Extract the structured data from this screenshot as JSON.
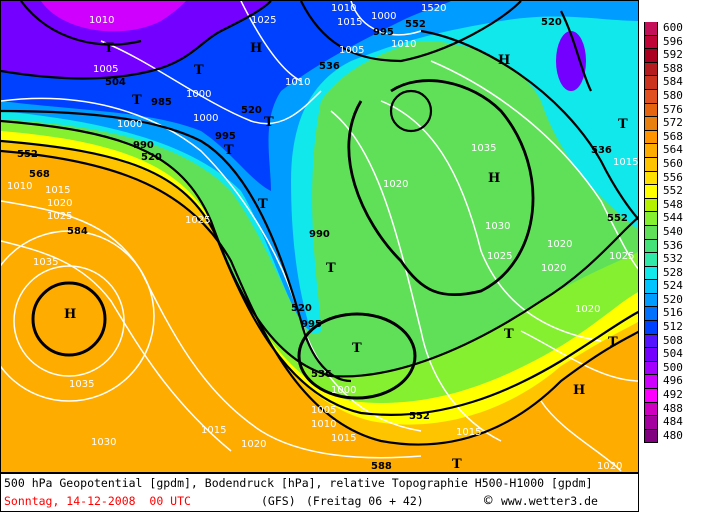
{
  "map": {
    "highs_lows": [
      "H",
      "H",
      "H",
      "H",
      "H",
      "T",
      "T",
      "T",
      "T",
      "T",
      "T",
      "T",
      "T",
      "T",
      "T",
      "T",
      "T"
    ],
    "labels": [
      "1010",
      "1005",
      "504",
      "1000",
      "990",
      "985",
      "520",
      "552",
      "568",
      "1015",
      "1020",
      "1025",
      "584",
      "1035",
      "1035",
      "1030",
      "1010",
      "1025",
      "1000",
      "995",
      "520",
      "1005",
      "1010",
      "1000",
      "995",
      "536",
      "552",
      "1035",
      "1020",
      "1030",
      "1025",
      "1020",
      "990",
      "520",
      "536",
      "995",
      "1000",
      "1005",
      "1010",
      "1015",
      "1020",
      "552",
      "1015",
      "1020",
      "1020",
      "1015",
      "588",
      "536",
      "1015",
      "552",
      "1025",
      "1020",
      "1025",
      "1010",
      "1520",
      "1010",
      "1000",
      "520",
      "1015"
    ]
  },
  "legend": {
    "levels": [
      "600",
      "596",
      "592",
      "588",
      "584",
      "580",
      "576",
      "572",
      "568",
      "564",
      "560",
      "556",
      "552",
      "548",
      "544",
      "540",
      "536",
      "532",
      "528",
      "524",
      "520",
      "516",
      "512",
      "508",
      "504",
      "500",
      "496",
      "492",
      "488",
      "484",
      "480"
    ],
    "colors": [
      "#c41058",
      "#c00438",
      "#ac0020",
      "#b41c20",
      "#cc3420",
      "#e05020",
      "#e46410",
      "#e88010",
      "#ff9400",
      "#ffac00",
      "#ffc400",
      "#ffe000",
      "#ffff00",
      "#b4f000",
      "#84f030",
      "#60e058",
      "#44e078",
      "#30e8a8",
      "#10e8ec",
      "#00c4ff",
      "#009cff",
      "#0070ff",
      "#0040ff",
      "#5414ff",
      "#7400ff",
      "#a400ff",
      "#d000ff",
      "#ff00ff",
      "#d000c0",
      "#a400a0",
      "#800080"
    ]
  },
  "footer": {
    "title": "500 hPa Geopotential [gpdm], Bodendruck [hPa], relative Topographie H500-H1000 [gpdm]",
    "date": "Sonntag, 14-12-2008  00 UTC",
    "model": "(GFS)",
    "run": "(Freitag 06 + 42)",
    "copyright": "©",
    "site": "www.wetter3.de"
  }
}
